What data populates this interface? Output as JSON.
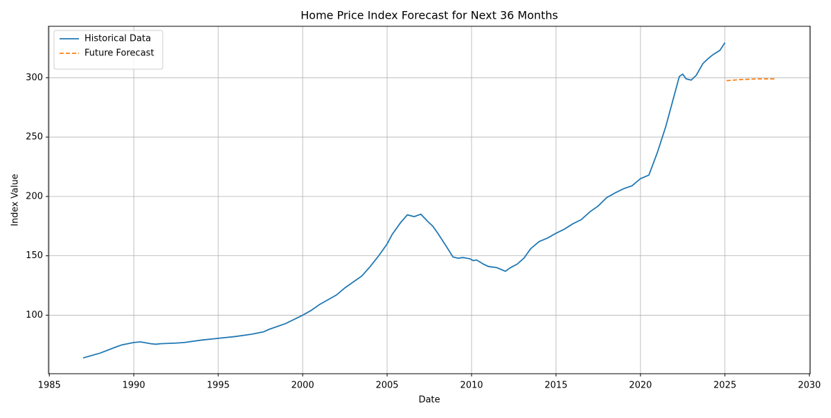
{
  "chart_data": {
    "type": "line",
    "title": "Home Price Index Forecast for Next 36 Months",
    "x_label": "Date",
    "y_label": "Index Value",
    "xlim": [
      1984.95,
      2030.05
    ],
    "xticks": [
      1985,
      1990,
      1995,
      2000,
      2005,
      2010,
      2015,
      2020,
      2025,
      2030
    ],
    "ylim": [
      50.7,
      343.3
    ],
    "yticks": [
      100,
      150,
      200,
      250,
      300
    ],
    "grid": true,
    "legend": "upper left",
    "series": [
      {
        "name": "Historical Data",
        "color": "#1f77b4",
        "linestyle": "solid",
        "x": [
          1987.0,
          1988.0,
          1989.0,
          1989.3,
          1990.0,
          1990.4,
          1991.0,
          1991.3,
          1991.6,
          1992.5,
          1993.0,
          1994.0,
          1995.0,
          1996.0,
          1997.0,
          1997.7,
          1998.0,
          1999.0,
          2000.0,
          2000.5,
          2001.0,
          2001.5,
          2002.0,
          2002.5,
          2003.0,
          2003.5,
          2004.0,
          2004.5,
          2005.0,
          2005.3,
          2005.8,
          2006.2,
          2006.6,
          2007.0,
          2007.4,
          2007.7,
          2008.0,
          2008.5,
          2008.9,
          2009.2,
          2009.5,
          2009.9,
          2010.1,
          2010.3,
          2010.7,
          2011.0,
          2011.5,
          2012.0,
          2012.3,
          2012.7,
          2013.1,
          2013.5,
          2014.0,
          2014.5,
          2015.0,
          2015.5,
          2016.0,
          2016.5,
          2017.0,
          2017.5,
          2018.0,
          2018.5,
          2019.0,
          2019.5,
          2020.0,
          2020.5,
          2021.0,
          2021.5,
          2021.9,
          2022.3,
          2022.5,
          2022.7,
          2023.0,
          2023.3,
          2023.7,
          2024.0,
          2024.3,
          2024.7,
          2025.0
        ],
        "values": [
          64,
          68,
          73.5,
          75,
          77,
          77.5,
          76,
          75.5,
          76,
          76.5,
          77,
          79,
          80.5,
          82,
          84,
          86,
          88,
          93,
          100,
          104,
          109,
          113,
          117,
          123,
          128,
          133,
          141,
          150,
          160,
          168,
          178,
          184.5,
          183,
          185,
          179,
          175,
          169,
          158,
          149,
          148,
          148.5,
          147.5,
          146,
          146.5,
          143,
          141,
          140,
          137,
          140,
          143,
          148,
          156,
          162,
          165,
          169,
          172.5,
          177,
          180.5,
          187,
          192,
          199,
          203,
          206.5,
          209,
          215,
          218,
          237,
          259,
          280,
          301,
          303,
          299,
          298,
          302,
          312,
          316,
          319.5,
          323,
          329.5
        ]
      },
      {
        "name": "Future Forecast",
        "color": "#ff7f0e",
        "linestyle": "dashed",
        "x": [
          2025.1,
          2026.0,
          2027.0,
          2028.0
        ],
        "values": [
          297.5,
          298.5,
          299,
          299
        ]
      }
    ]
  }
}
